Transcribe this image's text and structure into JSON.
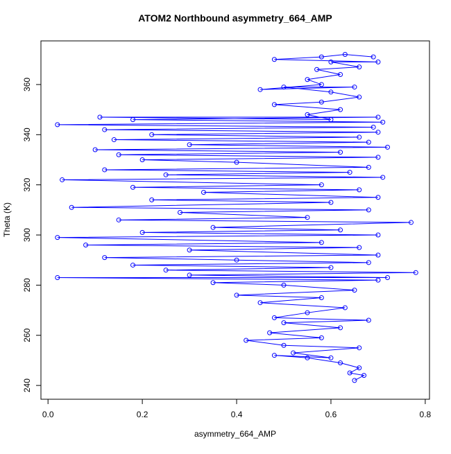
{
  "chart_data": {
    "type": "line",
    "title": "ATOM2 Northbound asymmetry_664_AMP",
    "x_label": "asymmetry_664_AMP",
    "y_label": "Theta (K)",
    "color": "#0000ff",
    "marker": "open-circle",
    "xlim": [
      -0.015,
      0.809
    ],
    "ylim": [
      234.5,
      377.4
    ],
    "xticks": [
      {
        "value": 0,
        "label": "0.0"
      },
      0.2,
      0.4,
      0.6,
      0.8
    ],
    "yticks": [
      240,
      260,
      280,
      300,
      320,
      340,
      360
    ],
    "x": [
      0.65,
      0.67,
      0.64,
      0.66,
      0.62,
      0.55,
      0.48,
      0.6,
      0.52,
      0.66,
      0.5,
      0.42,
      0.58,
      0.47,
      0.62,
      0.5,
      0.68,
      0.48,
      0.55,
      0.63,
      0.45,
      0.58,
      0.4,
      0.65,
      0.5,
      0.35,
      0.7,
      0.02,
      0.72,
      0.3,
      0.78,
      0.25,
      0.6,
      0.18,
      0.68,
      0.4,
      0.12,
      0.7,
      0.3,
      0.66,
      0.08,
      0.58,
      0.02,
      0.7,
      0.2,
      0.62,
      0.35,
      0.77,
      0.15,
      0.55,
      0.28,
      0.68,
      0.05,
      0.6,
      0.22,
      0.7,
      0.33,
      0.66,
      0.18,
      0.58,
      0.03,
      0.71,
      0.25,
      0.64,
      0.12,
      0.68,
      0.4,
      0.2,
      0.7,
      0.15,
      0.62,
      0.1,
      0.72,
      0.3,
      0.68,
      0.14,
      0.66,
      0.22,
      0.7,
      0.12,
      0.69,
      0.02,
      0.71,
      0.18,
      0.7,
      0.11,
      0.6,
      0.55,
      0.62,
      0.48,
      0.58,
      0.66,
      0.6,
      0.5,
      0.65,
      0.45,
      0.58,
      0.55,
      0.62,
      0.57,
      0.66,
      0.6,
      0.7,
      0.48,
      0.58,
      0.63,
      0.69
    ],
    "values": [
      242,
      244,
      245,
      247,
      249,
      251,
      252,
      251,
      253,
      255,
      256,
      258,
      259,
      261,
      263,
      265,
      266,
      267,
      269,
      271,
      273,
      275,
      276,
      278,
      280,
      281,
      282,
      283,
      283,
      284,
      285,
      286,
      287,
      288,
      289,
      290,
      291,
      292,
      294,
      295,
      296,
      297,
      299,
      300,
      301,
      302,
      303,
      305,
      306,
      307,
      309,
      310,
      311,
      313,
      314,
      315,
      317,
      318,
      319,
      320,
      322,
      323,
      324,
      325,
      326,
      327,
      329,
      330,
      331,
      332,
      333,
      334,
      335,
      336,
      337,
      338,
      339,
      340,
      341,
      342,
      343,
      344,
      345,
      346,
      347,
      347,
      346,
      348,
      350,
      352,
      353,
      355,
      357,
      359,
      359,
      358,
      360,
      362,
      364,
      366,
      367,
      369,
      369,
      370,
      371,
      372,
      371
    ]
  }
}
